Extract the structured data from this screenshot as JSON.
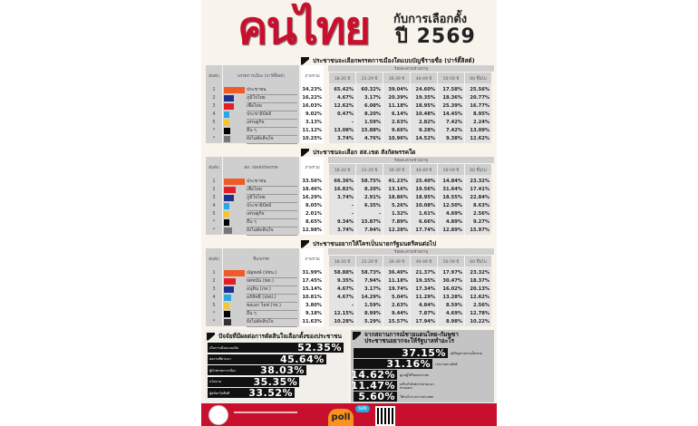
{
  "header": {
    "title": "คนไทย",
    "subtitle_line1": "กับการเลือกตั้ง",
    "subtitle_line2": "ปี 2569"
  },
  "common": {
    "rank_label": "อันดับ",
    "total_label": "ภาพรวม",
    "age_group_label": "ร้อยละตามช่วงอายุ",
    "age_groups": [
      "18-20 ปี",
      "21-29 ปี",
      "30-39 ปี",
      "40-49 ปี",
      "50-59 ปี",
      "60 ขึ้นไป"
    ]
  },
  "sections": [
    {
      "heading": "ประชาชนจะเลือกพรรคการเมืองใดแบบบัญชีรายชื่อ (ปาร์ตี้ลิสต์)",
      "column_label": "พรรคการเมือง (ปาร์ตี้ลิสต์)",
      "rows": [
        {
          "rank": "1",
          "name": "ประชาชน",
          "color": "#f05a28",
          "total": "34.23%",
          "ages": [
            "65.42%",
            "60.32%",
            "39.04%",
            "24.60%",
            "17.58%",
            "25.56%"
          ]
        },
        {
          "rank": "2",
          "name": "ภูมิใจไทย",
          "color": "#1f2f8c",
          "total": "16.22%",
          "ages": [
            "4.67%",
            "3.17%",
            "20.39%",
            "19.35%",
            "18.36%",
            "20.77%"
          ]
        },
        {
          "rank": "3",
          "name": "เพื่อไทย",
          "color": "#e31e26",
          "total": "16.03%",
          "ages": [
            "12.62%",
            "6.08%",
            "11.18%",
            "18.95%",
            "25.39%",
            "16.77%"
          ]
        },
        {
          "rank": "4",
          "name": "ประชาธิปัตย์",
          "color": "#29a9e1",
          "total": "9.02%",
          "ages": [
            "0.47%",
            "8.20%",
            "6.14%",
            "10.48%",
            "14.45%",
            "8.95%"
          ]
        },
        {
          "rank": "5",
          "name": "เศรษฐกิจ",
          "color": "#f5c430",
          "total": "3.13%",
          "ages": [
            "-",
            "1.59%",
            "2.63%",
            "2.82%",
            "7.42%",
            "2.24%"
          ]
        },
        {
          "rank": "*",
          "name": "อื่น ๆ",
          "color": "#000000",
          "total": "11.12%",
          "ages": [
            "13.08%",
            "15.88%",
            "9.66%",
            "9.28%",
            "7.42%",
            "13.09%"
          ]
        },
        {
          "rank": "*",
          "name": "ยังไม่ตัดสินใจ",
          "color": "#777777",
          "total": "10.25%",
          "ages": [
            "3.74%",
            "4.76%",
            "10.96%",
            "14.52%",
            "9.38%",
            "12.62%"
          ]
        }
      ]
    },
    {
      "heading": "ประชาชนจะเลือก สส.เขต สังกัดพรรคใด",
      "column_label": "สส. เขตสังกัดพรรค",
      "rows": [
        {
          "rank": "1",
          "name": "ประชาชน",
          "color": "#f05a28",
          "total": "33.56%",
          "ages": [
            "66.36%",
            "58.75%",
            "41.23%",
            "25.40%",
            "14.84%",
            "23.32%"
          ]
        },
        {
          "rank": "2",
          "name": "เพื่อไทย",
          "color": "#e31e26",
          "total": "18.46%",
          "ages": [
            "16.82%",
            "8.20%",
            "13.16%",
            "19.56%",
            "31.64%",
            "17.41%"
          ]
        },
        {
          "rank": "3",
          "name": "ภูมิใจไทย",
          "color": "#1f2f8c",
          "total": "16.29%",
          "ages": [
            "3.74%",
            "2.91%",
            "18.86%",
            "18.95%",
            "18.55%",
            "22.84%"
          ]
        },
        {
          "rank": "4",
          "name": "ประชาธิปัตย์",
          "color": "#29a9e1",
          "total": "8.05%",
          "ages": [
            "-",
            "6.35%",
            "5.26%",
            "10.08%",
            "12.50%",
            "8.63%"
          ]
        },
        {
          "rank": "5",
          "name": "เศรษฐกิจ",
          "color": "#f5c430",
          "total": "2.01%",
          "ages": [
            "-",
            "-",
            "1.32%",
            "1.61%",
            "4.69%",
            "2.56%"
          ]
        },
        {
          "rank": "*",
          "name": "อื่น ๆ",
          "color": "#000000",
          "total": "8.65%",
          "ages": [
            "9.34%",
            "15.87%",
            "7.89%",
            "6.66%",
            "4.89%",
            "9.27%"
          ]
        },
        {
          "rank": "*",
          "name": "ยังไม่ตัดสินใจ",
          "color": "#777777",
          "total": "12.98%",
          "ages": [
            "3.74%",
            "7.94%",
            "12.28%",
            "17.74%",
            "12.89%",
            "15.97%"
          ]
        }
      ]
    },
    {
      "heading": "ประชาชนอยากให้ใครเป็นนายกรัฐมนตรีคนต่อไป",
      "column_label": "ชื่อ/พรรค",
      "rows": [
        {
          "rank": "1",
          "name": "ณัฐพงษ์ (ปชน.)",
          "color": "#f05a28",
          "total": "31.99%",
          "ages": [
            "58.88%",
            "58.73%",
            "36.40%",
            "21.37%",
            "17.97%",
            "23.32%"
          ]
        },
        {
          "rank": "2",
          "name": "ยศชนัน (พท.)",
          "color": "#e31e26",
          "total": "17.45%",
          "ages": [
            "9.35%",
            "7.94%",
            "11.18%",
            "19.35%",
            "30.47%",
            "18.37%"
          ]
        },
        {
          "rank": "3",
          "name": "อนุทิน (ภท.)",
          "color": "#1f2f8c",
          "total": "15.14%",
          "ages": [
            "4.67%",
            "3.17%",
            "19.74%",
            "17.34%",
            "16.02%",
            "20.13%"
          ]
        },
        {
          "rank": "4",
          "name": "อภิสิทธิ์ (ปชป.)",
          "color": "#29a9e1",
          "total": "10.81%",
          "ages": [
            "4.67%",
            "14.29%",
            "5.04%",
            "11.29%",
            "13.28%",
            "12.62%"
          ]
        },
        {
          "rank": "5",
          "name": "พลเอก ร็อฟ (รท.)",
          "color": "#f5c430",
          "total": "3.80%",
          "ages": [
            "-",
            "1.59%",
            "2.63%",
            "4.84%",
            "8.59%",
            "2.56%"
          ]
        },
        {
          "rank": "*",
          "name": "อื่น ๆ",
          "color": "#000000",
          "total": "9.18%",
          "ages": [
            "12.15%",
            "8.99%",
            "9.44%",
            "7.87%",
            "4.69%",
            "12.78%"
          ]
        },
        {
          "rank": "*",
          "name": "ยังไม่ตัดสินใจ",
          "color": "#333333",
          "total": "11.63%",
          "ages": [
            "10.28%",
            "5.29%",
            "15.57%",
            "17.94%",
            "8.98%",
            "10.22%"
          ]
        }
      ]
    }
  ],
  "factors": {
    "heading": "ปัจจัยที่มีผลต่อการตัดสินใจเลือกตั้งของประชาชน",
    "items": [
      {
        "label": "เบื่อการเมืองแบบเดิม",
        "value": "52.35%",
        "pct": 52.35
      },
      {
        "label": "ผลงานที่ผ่านมา",
        "value": "45.64%",
        "pct": 45.64
      },
      {
        "label": "ผู้นำพรรคการเมือง",
        "value": "38.03%",
        "pct": 38.03
      },
      {
        "label": "นโยบาย",
        "value": "35.35%",
        "pct": 35.35
      },
      {
        "label": "ผู้สมัครในพื้นที่",
        "value": "33.52%",
        "pct": 33.52
      }
    ]
  },
  "border": {
    "heading": "จากสถานการณ์ชายแดนไทย-กัมพูชา ประชาชนอยากจะให้รัฐบาลทำอะไร",
    "items": [
      {
        "label": "ยุติปัญหาอย่างเด็ดขาด",
        "value": "37.15%",
        "pct": 37.15
      },
      {
        "label": "เจรจาอย่างสันติ",
        "value": "31.16%",
        "pct": 31.16
      },
      {
        "label": "ดูแลผู้ได้รับผลกระทบ",
        "value": "14.62%",
        "pct": 14.62
      },
      {
        "label": "เสริมกำลังทหารตามแนวชายแดน",
        "value": "11.47%",
        "pct": 11.47
      },
      {
        "label": "ใช้กลไกระหว่างประเทศ",
        "value": "5.60%",
        "pct": 5.6
      }
    ]
  },
  "footer": {
    "brand": "poll",
    "brand_tag": "talk"
  },
  "colors": {
    "accent": "#c8102e",
    "poster_bg": "#f8f4ec"
  }
}
